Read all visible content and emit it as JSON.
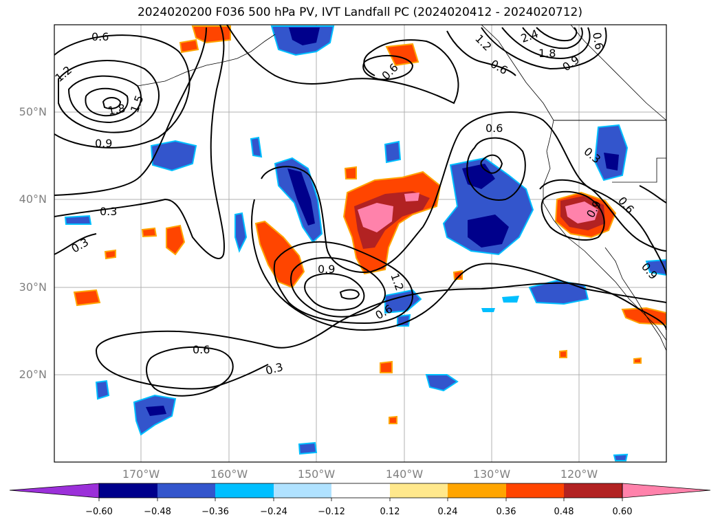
{
  "title": "2024020200 F036 500 hPa PV, IVT Landfall PC (2024020412 - 2024020712)",
  "map": {
    "lat_labels": [
      "50°N",
      "40°N",
      "30°N",
      "20°N"
    ],
    "lon_labels": [
      "170°W",
      "160°W",
      "150°W",
      "140°W",
      "130°W",
      "120°W"
    ]
  },
  "contour_labels": [
    "0.6",
    "1.2",
    "1.8",
    "1.5",
    "0.9",
    "0.3",
    "0.3",
    "0.6",
    "0.6",
    "1.2",
    "2.4",
    "1.8",
    "0.9",
    "0.6",
    "0.6",
    "0.3",
    "0.9",
    "0.6",
    "0.9",
    "0.9",
    "1.2",
    "0.6",
    "0.6",
    "0.3"
  ],
  "colorbar": {
    "ticks": [
      "−0.60",
      "−0.48",
      "−0.36",
      "−0.24",
      "−0.12",
      "0.12",
      "0.24",
      "0.36",
      "0.48",
      "0.60"
    ],
    "colors": [
      "#9b30d9",
      "#00008b",
      "#3355cc",
      "#00bfff",
      "#b0e2ff",
      "#ffffff",
      "#ffe88c",
      "#ffa500",
      "#ff4500",
      "#b22222",
      "#ff82ab"
    ]
  }
}
